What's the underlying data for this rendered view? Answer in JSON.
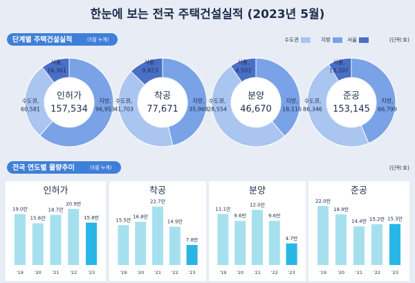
{
  "title": "한눈에 보는 전국 주택건설실적 (2023년 5월)",
  "section1": {
    "title": "단계별 주택건설실적",
    "note": "(5월 누계)",
    "unit": "(단위:호)"
  },
  "legend": {
    "labels": [
      "수도권",
      "지방",
      "서울"
    ],
    "colors": [
      "#a9c5f0",
      "#7aa2e6",
      "#4a6fc6"
    ]
  },
  "section2": {
    "title": "전국 연도별 물량추이",
    "note": "(5월 누계)",
    "unit": "(단위:호)"
  },
  "chart_data": [
    {
      "type": "pie",
      "center_label": "인허가",
      "total": 157534,
      "total_label": "157,534",
      "categories": [
        "서울,",
        "수도권,",
        "지방,"
      ],
      "values": [
        16361,
        60581,
        96953
      ],
      "value_labels": [
        "16,361",
        "60,581",
        "96,953"
      ],
      "colors": [
        "#4a6fc6",
        "#a9c5f0",
        "#7aa2e6"
      ]
    },
    {
      "type": "pie",
      "center_label": "착공",
      "total": 77671,
      "total_label": "77,671",
      "categories": [
        "서울,",
        "수도권,",
        "지방,"
      ],
      "values": [
        9823,
        41703,
        35968
      ],
      "value_labels": [
        "9,823",
        "41,703",
        "35,968"
      ],
      "colors": [
        "#4a6fc6",
        "#a9c5f0",
        "#7aa2e6"
      ]
    },
    {
      "type": "pie",
      "center_label": "분양",
      "total": 46670,
      "total_label": "46,670",
      "categories": [
        "서울,",
        "수도권,",
        "지방,"
      ],
      "values": [
        4502,
        28554,
        18116
      ],
      "value_labels": [
        "4,502",
        "28,554",
        "18,116"
      ],
      "colors": [
        "#4a6fc6",
        "#a9c5f0",
        "#7aa2e6"
      ]
    },
    {
      "type": "pie",
      "center_label": "준공",
      "total": 153145,
      "total_label": "153,145",
      "categories": [
        "서울,",
        "수도권,",
        "지방,"
      ],
      "values": [
        13107,
        86346,
        66799
      ],
      "value_labels": [
        "13,107",
        "86,346",
        "66,799"
      ],
      "colors": [
        "#4a6fc6",
        "#a9c5f0",
        "#7aa2e6"
      ]
    },
    {
      "type": "bar",
      "title": "인허가",
      "categories": [
        "'19",
        "'20",
        "'21",
        "'22",
        "'23"
      ],
      "values": [
        19.0,
        15.6,
        18.7,
        20.9,
        15.8
      ],
      "value_labels": [
        "19.0만",
        "15.6만",
        "18.7만",
        "20.9만",
        "15.8만"
      ],
      "colors": [
        "#a6e0ee",
        "#a6e0ee",
        "#a6e0ee",
        "#a6e0ee",
        "#28b6e6"
      ],
      "ylim": [
        0,
        24
      ]
    },
    {
      "type": "bar",
      "title": "착공",
      "categories": [
        "'19",
        "'20",
        "'21",
        "'22",
        "'23"
      ],
      "values": [
        15.5,
        16.8,
        22.7,
        14.9,
        7.8
      ],
      "value_labels": [
        "15.5만",
        "16.8만",
        "22.7만",
        "14.9만",
        "7.8만"
      ],
      "colors": [
        "#a6e0ee",
        "#a6e0ee",
        "#a6e0ee",
        "#a6e0ee",
        "#28b6e6"
      ],
      "ylim": [
        0,
        25
      ]
    },
    {
      "type": "bar",
      "title": "분양",
      "categories": [
        "'19",
        "'20",
        "'21",
        "'22",
        "'23"
      ],
      "values": [
        11.1,
        9.6,
        12.0,
        9.6,
        4.7
      ],
      "value_labels": [
        "11.1만",
        "9.6만",
        "12.0만",
        "9.6만",
        "4.7만"
      ],
      "colors": [
        "#a6e0ee",
        "#a6e0ee",
        "#a6e0ee",
        "#a6e0ee",
        "#28b6e6"
      ],
      "ylim": [
        0,
        14
      ]
    },
    {
      "type": "bar",
      "title": "준공",
      "categories": [
        "'19",
        "'20",
        "'21",
        "'22",
        "'23"
      ],
      "values": [
        22.0,
        18.9,
        14.4,
        15.2,
        15.3
      ],
      "value_labels": [
        "22.0만",
        "18.9만",
        "14.4만",
        "15.2만",
        "15.3만"
      ],
      "colors": [
        "#a6e0ee",
        "#a6e0ee",
        "#a6e0ee",
        "#a6e0ee",
        "#28b6e6"
      ],
      "ylim": [
        0,
        24
      ]
    }
  ]
}
